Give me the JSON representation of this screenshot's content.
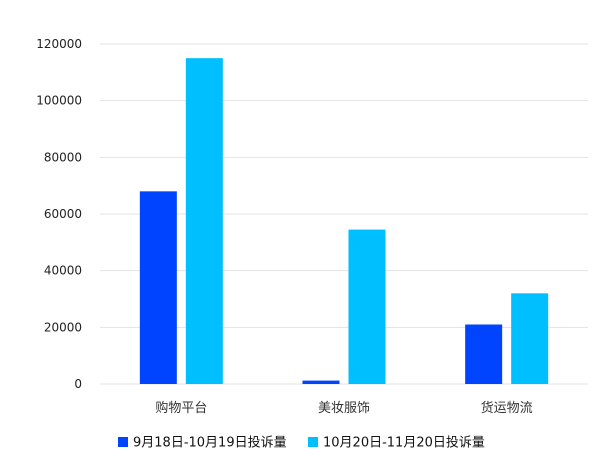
{
  "chart_data": {
    "type": "bar",
    "categories": [
      "购物平台",
      "美妆服饰",
      "货运物流"
    ],
    "series": [
      {
        "name": "9月18日-10月19日投诉量",
        "color": "#0044ff",
        "values": [
          68000,
          1200,
          21000
        ]
      },
      {
        "name": "10月20日-11月20日投诉量",
        "color": "#00bfff",
        "values": [
          115000,
          54500,
          32000
        ]
      }
    ],
    "yticks": [
      0,
      20000,
      40000,
      60000,
      80000,
      100000,
      120000
    ],
    "ylim": [
      0,
      120000
    ],
    "grid": true,
    "legend_position": "bottom"
  }
}
